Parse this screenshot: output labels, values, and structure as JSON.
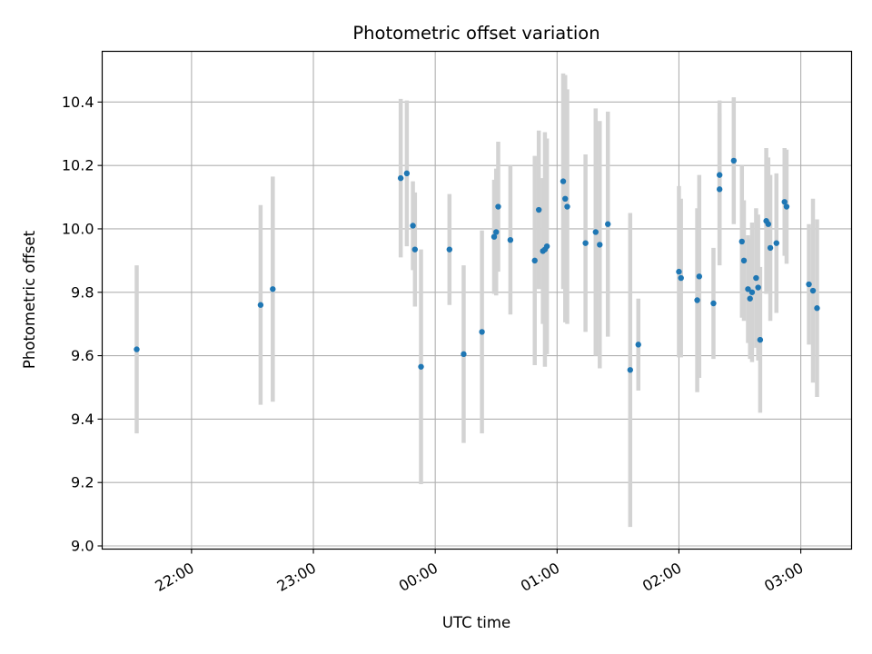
{
  "chart_data": {
    "type": "scatter",
    "title": "Photometric offset variation",
    "xlabel": "UTC time",
    "ylabel": "Photometric offset",
    "x_axis": {
      "kind": "time",
      "range": [
        "21:16",
        "03:25"
      ],
      "ticks": [
        {
          "value": "22:00",
          "label": "22:00"
        },
        {
          "value": "23:00",
          "label": "23:00"
        },
        {
          "value": "00:00",
          "label": "00:00"
        },
        {
          "value": "01:00",
          "label": "01:00"
        },
        {
          "value": "02:00",
          "label": "02:00"
        },
        {
          "value": "03:00",
          "label": "03:00"
        }
      ]
    },
    "y_axis": {
      "range": [
        8.99,
        10.56
      ],
      "ticks": [
        {
          "value": 9.0,
          "label": "9.0"
        },
        {
          "value": 9.2,
          "label": "9.2"
        },
        {
          "value": 9.4,
          "label": "9.4"
        },
        {
          "value": 9.6,
          "label": "9.6"
        },
        {
          "value": 9.8,
          "label": "9.8"
        },
        {
          "value": 10.0,
          "label": "10.0"
        },
        {
          "value": 10.2,
          "label": "10.2"
        },
        {
          "value": 10.4,
          "label": "10.4"
        }
      ]
    },
    "grid": true,
    "colors": {
      "point": "#1f77b4",
      "errorbar": "#d3d3d3",
      "grid": "#b0b0b0"
    },
    "points": [
      {
        "x": "21:33",
        "y": 9.62,
        "err": 0.265
      },
      {
        "x": "22:34",
        "y": 9.76,
        "err": 0.315
      },
      {
        "x": "22:40",
        "y": 9.81,
        "err": 0.355
      },
      {
        "x": "23:43",
        "y": 10.16,
        "err": 0.25
      },
      {
        "x": "23:46",
        "y": 10.175,
        "err": 0.23
      },
      {
        "x": "23:49",
        "y": 10.01,
        "err": 0.14
      },
      {
        "x": "23:50",
        "y": 9.935,
        "err": 0.18
      },
      {
        "x": "23:53",
        "y": 9.565,
        "err": 0.37
      },
      {
        "x": "00:07",
        "y": 9.935,
        "err": 0.175
      },
      {
        "x": "00:14",
        "y": 9.605,
        "err": 0.28
      },
      {
        "x": "00:23",
        "y": 9.675,
        "err": 0.32
      },
      {
        "x": "00:29",
        "y": 9.975,
        "err": 0.18
      },
      {
        "x": "00:30",
        "y": 9.99,
        "err": 0.2
      },
      {
        "x": "00:31",
        "y": 10.07,
        "err": 0.205
      },
      {
        "x": "00:37",
        "y": 9.965,
        "err": 0.235
      },
      {
        "x": "00:49",
        "y": 9.9,
        "err": 0.33
      },
      {
        "x": "00:51",
        "y": 10.06,
        "err": 0.25
      },
      {
        "x": "00:53",
        "y": 9.93,
        "err": 0.23
      },
      {
        "x": "00:54",
        "y": 9.935,
        "err": 0.37
      },
      {
        "x": "00:55",
        "y": 9.945,
        "err": 0.34
      },
      {
        "x": "01:03",
        "y": 10.15,
        "err": 0.34
      },
      {
        "x": "01:04",
        "y": 10.095,
        "err": 0.39
      },
      {
        "x": "01:05",
        "y": 10.07,
        "err": 0.37
      },
      {
        "x": "01:14",
        "y": 9.955,
        "err": 0.28
      },
      {
        "x": "01:19",
        "y": 9.99,
        "err": 0.39
      },
      {
        "x": "01:21",
        "y": 9.95,
        "err": 0.39
      },
      {
        "x": "01:25",
        "y": 10.015,
        "err": 0.355
      },
      {
        "x": "01:36",
        "y": 9.555,
        "err": 0.495
      },
      {
        "x": "01:40",
        "y": 9.635,
        "err": 0.145
      },
      {
        "x": "02:00",
        "y": 9.865,
        "err": 0.27
      },
      {
        "x": "02:01",
        "y": 9.845,
        "err": 0.25
      },
      {
        "x": "02:09",
        "y": 9.775,
        "err": 0.29
      },
      {
        "x": "02:10",
        "y": 9.85,
        "err": 0.32
      },
      {
        "x": "02:17",
        "y": 9.765,
        "err": 0.175
      },
      {
        "x": "02:20",
        "y": 10.17,
        "err": 0.235
      },
      {
        "x": "02:20",
        "y": 10.125,
        "err": 0.24
      },
      {
        "x": "02:27",
        "y": 10.215,
        "err": 0.2
      },
      {
        "x": "02:31",
        "y": 9.96,
        "err": 0.24
      },
      {
        "x": "02:32",
        "y": 9.9,
        "err": 0.19
      },
      {
        "x": "02:34",
        "y": 9.81,
        "err": 0.17
      },
      {
        "x": "02:35",
        "y": 9.78,
        "err": 0.19
      },
      {
        "x": "02:36",
        "y": 9.8,
        "err": 0.22
      },
      {
        "x": "02:38",
        "y": 9.845,
        "err": 0.22
      },
      {
        "x": "02:39",
        "y": 9.815,
        "err": 0.23
      },
      {
        "x": "02:40",
        "y": 9.65,
        "err": 0.23
      },
      {
        "x": "02:43",
        "y": 10.025,
        "err": 0.23
      },
      {
        "x": "02:44",
        "y": 10.015,
        "err": 0.21
      },
      {
        "x": "02:45",
        "y": 9.94,
        "err": 0.23
      },
      {
        "x": "02:48",
        "y": 9.955,
        "err": 0.22
      },
      {
        "x": "02:52",
        "y": 10.085,
        "err": 0.17
      },
      {
        "x": "02:53",
        "y": 10.07,
        "err": 0.18
      },
      {
        "x": "03:04",
        "y": 9.825,
        "err": 0.19
      },
      {
        "x": "03:06",
        "y": 9.805,
        "err": 0.29
      },
      {
        "x": "03:08",
        "y": 9.75,
        "err": 0.28
      }
    ]
  }
}
